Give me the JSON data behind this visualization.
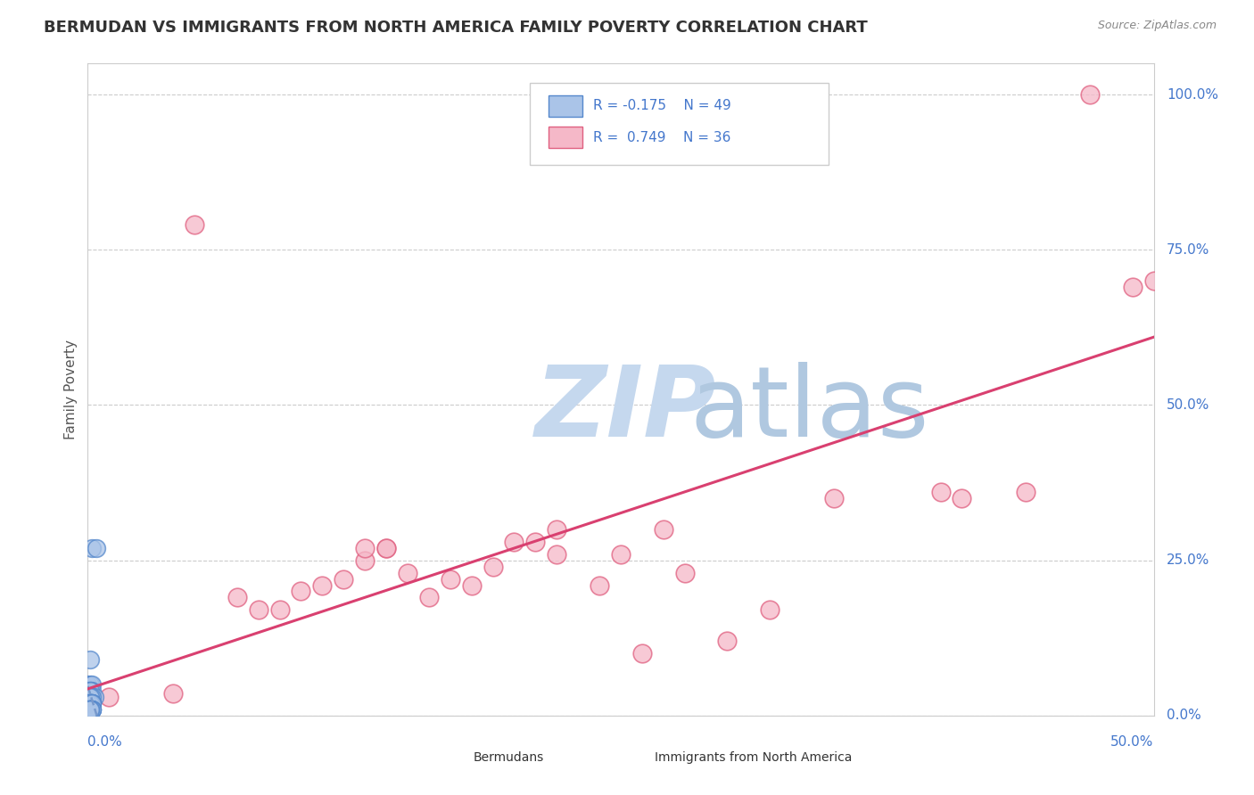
{
  "title": "BERMUDAN VS IMMIGRANTS FROM NORTH AMERICA FAMILY POVERTY CORRELATION CHART",
  "source": "Source: ZipAtlas.com",
  "ylabel": "Family Poverty",
  "y_tick_labels": [
    "0.0%",
    "25.0%",
    "50.0%",
    "75.0%",
    "100.0%"
  ],
  "y_tick_values": [
    0,
    0.25,
    0.5,
    0.75,
    1.0
  ],
  "x_tick_labels_bottom": [
    "0.0%",
    "50.0%"
  ],
  "xlim": [
    0,
    0.5
  ],
  "ylim": [
    0,
    1.05
  ],
  "blue_R": -0.175,
  "blue_N": 49,
  "pink_R": 0.749,
  "pink_N": 36,
  "blue_color": "#aac4e8",
  "pink_color": "#f5b8c8",
  "blue_edge": "#5588cc",
  "pink_edge": "#e06080",
  "trend_blue_color": "#7799cc",
  "trend_pink_color": "#d94070",
  "watermark_zip_color": "#c5d8ee",
  "watermark_atlas_color": "#b0c8e0",
  "title_color": "#333333",
  "axis_label_color": "#4477cc",
  "legend_text_color": "#4477cc",
  "source_color": "#888888",
  "grid_color": "#cccccc",
  "blue_x": [
    0.002,
    0.004,
    0.001,
    0.0,
    0.001,
    0.002,
    0.001,
    0.0,
    0.001,
    0.002,
    0.001,
    0.002,
    0.003,
    0.001,
    0.0,
    0.001,
    0.002,
    0.001,
    0.002,
    0.001,
    0.001,
    0.002,
    0.001,
    0.0,
    0.001,
    0.002,
    0.001,
    0.002,
    0.001,
    0.0,
    0.001,
    0.002,
    0.001,
    0.001,
    0.002,
    0.001,
    0.0,
    0.001,
    0.002,
    0.001,
    0.001,
    0.0,
    0.001,
    0.002,
    0.001,
    0.001,
    0.002,
    0.001,
    0.001
  ],
  "blue_y": [
    0.27,
    0.27,
    0.09,
    0.05,
    0.05,
    0.05,
    0.04,
    0.04,
    0.04,
    0.04,
    0.04,
    0.03,
    0.03,
    0.03,
    0.03,
    0.03,
    0.03,
    0.03,
    0.02,
    0.02,
    0.02,
    0.02,
    0.02,
    0.02,
    0.02,
    0.02,
    0.02,
    0.02,
    0.02,
    0.02,
    0.02,
    0.02,
    0.01,
    0.01,
    0.01,
    0.01,
    0.01,
    0.01,
    0.01,
    0.01,
    0.01,
    0.01,
    0.01,
    0.01,
    0.01,
    0.01,
    0.01,
    0.01,
    0.01
  ],
  "pink_x": [
    0.01,
    0.04,
    0.05,
    0.07,
    0.08,
    0.09,
    0.1,
    0.11,
    0.12,
    0.13,
    0.13,
    0.14,
    0.14,
    0.15,
    0.16,
    0.17,
    0.18,
    0.19,
    0.2,
    0.21,
    0.22,
    0.22,
    0.24,
    0.25,
    0.26,
    0.27,
    0.28,
    0.3,
    0.32,
    0.35,
    0.4,
    0.41,
    0.44,
    0.47,
    0.49,
    0.5
  ],
  "pink_y": [
    0.03,
    0.035,
    0.79,
    0.19,
    0.17,
    0.17,
    0.2,
    0.21,
    0.22,
    0.25,
    0.27,
    0.27,
    0.27,
    0.23,
    0.19,
    0.22,
    0.21,
    0.24,
    0.28,
    0.28,
    0.26,
    0.3,
    0.21,
    0.26,
    0.1,
    0.3,
    0.23,
    0.12,
    0.17,
    0.35,
    0.36,
    0.35,
    0.36,
    1.0,
    0.69,
    0.7
  ]
}
